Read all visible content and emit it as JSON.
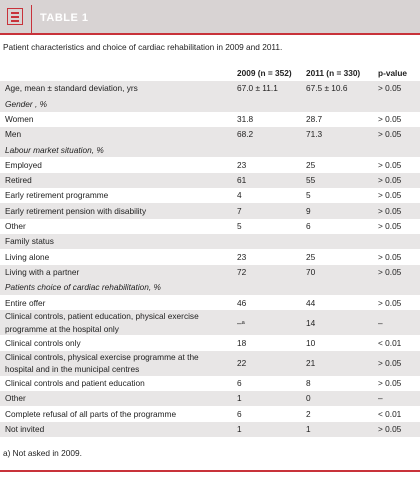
{
  "header": {
    "title": "TABLE 1"
  },
  "caption": "Patient characteristics and choice of cardiac rehabilitation in 2009 and 2011.",
  "table": {
    "columns": [
      "",
      "2009 (n = 352)",
      "2011 (n = 330)",
      "p-value"
    ],
    "rows": [
      [
        "Age, mean ± standard deviation, yrs",
        "67.0 ± 11.1",
        "67.5 ± 10.6",
        "> 0.05"
      ],
      [
        "Gender , %"
      ],
      [
        "Women",
        "31.8",
        "28.7",
        "> 0.05"
      ],
      [
        "Men",
        "68.2",
        "71.3",
        "> 0.05"
      ],
      [
        "Labour market situation, %"
      ],
      [
        "Employed",
        "23",
        "25",
        "> 0.05"
      ],
      [
        "Retired",
        "61",
        "55",
        "> 0.05"
      ],
      [
        "Early retirement programme",
        "4",
        "5",
        "> 0.05"
      ],
      [
        "Early retirement pension with disability",
        "7",
        "9",
        "> 0.05"
      ],
      [
        "Other",
        "5",
        "6",
        "> 0.05"
      ],
      [
        "Family status"
      ],
      [
        "Living alone",
        "23",
        "25",
        "> 0.05"
      ],
      [
        "Living with a partner",
        "72",
        "70",
        "> 0.05"
      ],
      [
        "Patients choice of cardiac rehabilitation, %"
      ],
      [
        "Entire offer",
        "46",
        "44",
        "> 0.05"
      ],
      [
        "Clinical controls, patient education, physical exercise programme at the hospital only",
        "–ᵃ",
        "14",
        "–"
      ],
      [
        "Clinical controls only",
        "18",
        "10",
        "< 0.01"
      ],
      [
        "Clinical controls, physical exercise programme at the hospital and in the municipal centres",
        "22",
        "21",
        "> 0.05"
      ],
      [
        "Clinical controls and patient education",
        "6",
        "8",
        "> 0.05"
      ],
      [
        "Other",
        "1",
        "0",
        "–"
      ],
      [
        "Complete refusal of all parts of the programme",
        "6",
        "2",
        "< 0.01"
      ],
      [
        "Not invited",
        "1",
        "1",
        "> 0.05"
      ]
    ]
  },
  "footnote": "a) Not asked in 2009."
}
